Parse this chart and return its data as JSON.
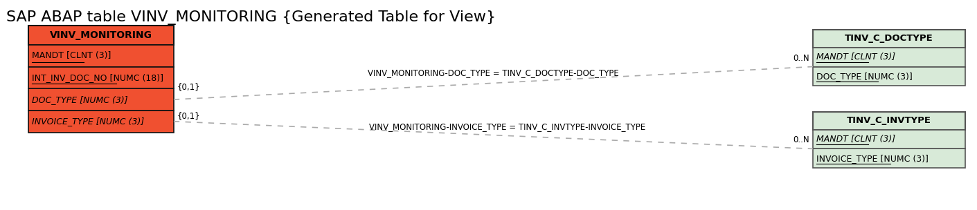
{
  "title": "SAP ABAP table VINV_MONITORING {Generated Table for View}",
  "title_fontsize": 16,
  "bg_color": "#ffffff",
  "left_table": {
    "name": "VINV_MONITORING",
    "header_color": "#f05030",
    "row_color": "#f05030",
    "border_color": "#111111",
    "fields": [
      {
        "text": "MANDT [CLNT (3)]",
        "italic": false,
        "underline": true
      },
      {
        "text": "INT_INV_DOC_NO [NUMC (18)]",
        "italic": false,
        "underline": true
      },
      {
        "text": "DOC_TYPE [NUMC (3)]",
        "italic": true,
        "underline": false
      },
      {
        "text": "INVOICE_TYPE [NUMC (3)]",
        "italic": true,
        "underline": false
      }
    ]
  },
  "right_table_top": {
    "name": "TINV_C_DOCTYPE",
    "header_color": "#d8ead8",
    "row_color": "#d8ead8",
    "border_color": "#555555",
    "fields": [
      {
        "text": "MANDT [CLNT (3)]",
        "italic": true,
        "underline": true
      },
      {
        "text": "DOC_TYPE [NUMC (3)]",
        "italic": false,
        "underline": true
      }
    ]
  },
  "right_table_bot": {
    "name": "TINV_C_INVTYPE",
    "header_color": "#d8ead8",
    "row_color": "#d8ead8",
    "border_color": "#555555",
    "fields": [
      {
        "text": "MANDT [CLNT (3)]",
        "italic": true,
        "underline": true
      },
      {
        "text": "INVOICE_TYPE [NUMC (3)]",
        "italic": false,
        "underline": true
      }
    ]
  },
  "rel1_label": "VINV_MONITORING-DOC_TYPE = TINV_C_DOCTYPE-DOC_TYPE",
  "rel2_label": "VINV_MONITORING-INVOICE_TYPE = TINV_C_INVTYPE-INVOICE_TYPE",
  "cardinality_left": "{0,1}",
  "cardinality_right": "0..N"
}
